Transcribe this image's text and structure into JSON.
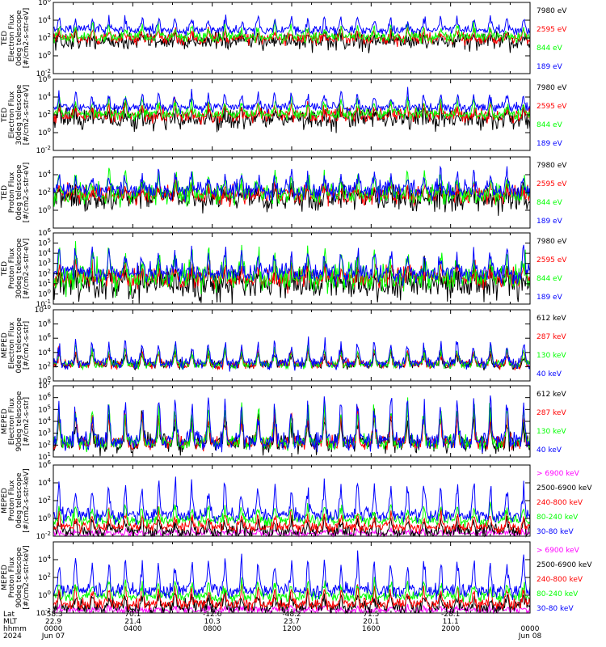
{
  "colors": {
    "black": "#000000",
    "red": "#ff0000",
    "green": "#00ff00",
    "blue": "#0000ff",
    "magenta": "#ff00ff"
  },
  "chart_data": [
    {
      "type": "line",
      "ylabel": [
        "TED",
        "Electron Flux",
        "0deg telescope",
        "[#/cm2-s-str-eV]"
      ],
      "yscale": "log",
      "ylim_exp": [
        -2,
        6
      ],
      "yticks": [
        {
          "base": "10",
          "exp": "6"
        },
        {
          "base": "10",
          "exp": "4"
        },
        {
          "base": "10",
          "exp": "2"
        },
        {
          "base": "10",
          "exp": "0"
        },
        {
          "base": "10",
          "exp": "-2"
        }
      ],
      "series": [
        {
          "name": "7980 eV",
          "color": "#000000",
          "base": 40,
          "peak": 200,
          "noise": 0.5
        },
        {
          "name": "2595 eV",
          "color": "#ff0000",
          "base": 80,
          "peak": 800,
          "noise": 0.3
        },
        {
          "name": "844 eV",
          "color": "#00ff00",
          "base": 120,
          "peak": 4000,
          "noise": 0.3
        },
        {
          "name": "189 eV",
          "color": "#0000ff",
          "base": 800,
          "peak": 30000,
          "noise": 0.25
        }
      ]
    },
    {
      "type": "line",
      "ylabel": [
        "TED",
        "Electron Flux",
        "30deg telescope",
        "[#/cm2-s-str-eV]"
      ],
      "yscale": "log",
      "ylim_exp": [
        -2,
        6
      ],
      "yticks": [
        {
          "base": "10",
          "exp": "6"
        },
        {
          "base": "10",
          "exp": "4"
        },
        {
          "base": "10",
          "exp": "2"
        },
        {
          "base": "10",
          "exp": "0"
        },
        {
          "base": "10",
          "exp": "-2"
        }
      ],
      "series": [
        {
          "name": "7980 eV",
          "color": "#000000",
          "base": 30,
          "peak": 300,
          "noise": 0.6
        },
        {
          "name": "2595 eV",
          "color": "#ff0000",
          "base": 80,
          "peak": 1500,
          "noise": 0.4
        },
        {
          "name": "844 eV",
          "color": "#00ff00",
          "base": 120,
          "peak": 8000,
          "noise": 0.3
        },
        {
          "name": "189 eV",
          "color": "#0000ff",
          "base": 700,
          "peak": 40000,
          "noise": 0.25
        }
      ]
    },
    {
      "type": "line",
      "ylabel": [
        "TED",
        "Proton Flux",
        "0deg telescope",
        "[#/cm2-s-str-eV]"
      ],
      "yscale": "log",
      "ylim_exp": [
        -2,
        6
      ],
      "yticks": [
        {
          "base": "10",
          "exp": "4"
        },
        {
          "base": "10",
          "exp": "2"
        },
        {
          "base": "10",
          "exp": "0"
        }
      ],
      "series": [
        {
          "name": "7980 eV",
          "color": "#000000",
          "base": 20,
          "peak": 200,
          "noise": 0.7
        },
        {
          "name": "2595 eV",
          "color": "#ff0000",
          "base": 50,
          "peak": 800,
          "noise": 0.5
        },
        {
          "name": "844 eV",
          "color": "#00ff00",
          "base": 60,
          "peak": 20000,
          "noise": 0.6
        },
        {
          "name": "189 eV",
          "color": "#0000ff",
          "base": 150,
          "peak": 30000,
          "noise": 0.5
        }
      ]
    },
    {
      "type": "line",
      "ylabel": [
        "TED",
        "Proton Flux",
        "30deg telescope",
        "[#/cm2-s-str-eV]"
      ],
      "yscale": "log",
      "ylim_exp": [
        -1,
        6
      ],
      "yticks": [
        {
          "base": "10",
          "exp": "6"
        },
        {
          "base": "10",
          "exp": "5"
        },
        {
          "base": "10",
          "exp": "4"
        },
        {
          "base": "10",
          "exp": "3"
        },
        {
          "base": "10",
          "exp": "2"
        },
        {
          "base": "10",
          "exp": "1"
        },
        {
          "base": "10",
          "exp": "0"
        },
        {
          "base": "10",
          "exp": "-1"
        }
      ],
      "series": [
        {
          "name": "7980 eV",
          "color": "#000000",
          "base": 8,
          "peak": 200,
          "noise": 0.8
        },
        {
          "name": "2595 eV",
          "color": "#ff0000",
          "base": 30,
          "peak": 600,
          "noise": 0.5
        },
        {
          "name": "844 eV",
          "color": "#00ff00",
          "base": 40,
          "peak": 20000,
          "noise": 0.7
        },
        {
          "name": "189 eV",
          "color": "#0000ff",
          "base": 100,
          "peak": 40000,
          "noise": 0.5
        }
      ]
    },
    {
      "type": "line",
      "ylabel": [
        "MEPED",
        "Electron Flux",
        "0deg telescope",
        "[#/cm2-s-str]"
      ],
      "yscale": "log",
      "ylim_exp": [
        0,
        10
      ],
      "yticks": [
        {
          "base": "10",
          "exp": "10"
        },
        {
          "base": "10",
          "exp": "8"
        },
        {
          "base": "10",
          "exp": "6"
        },
        {
          "base": "10",
          "exp": "4"
        },
        {
          "base": "10",
          "exp": "2"
        },
        {
          "base": "10",
          "exp": "0"
        }
      ],
      "series": [
        {
          "name": "612 keV",
          "color": "#000000",
          "base": 200,
          "peak": 20000,
          "noise": 0.3
        },
        {
          "name": "287 keV",
          "color": "#ff0000",
          "base": 200,
          "peak": 30000,
          "noise": 0.3
        },
        {
          "name": "130 keV",
          "color": "#00ff00",
          "base": 200,
          "peak": 100000,
          "noise": 0.3
        },
        {
          "name": "40 keV",
          "color": "#0000ff",
          "base": 300,
          "peak": 1000000,
          "noise": 0.4
        }
      ]
    },
    {
      "type": "line",
      "ylabel": [
        "MEPED",
        "Electron Flux",
        "90deg telescope",
        "[#/cm2-s-str]"
      ],
      "yscale": "log",
      "ylim_exp": [
        1,
        7
      ],
      "yticks": [
        {
          "base": "10",
          "exp": "7"
        },
        {
          "base": "10",
          "exp": "6"
        },
        {
          "base": "10",
          "exp": "5"
        },
        {
          "base": "10",
          "exp": "4"
        },
        {
          "base": "10",
          "exp": "3"
        },
        {
          "base": "10",
          "exp": "2"
        },
        {
          "base": "10",
          "exp": "1"
        }
      ],
      "series": [
        {
          "name": "612 keV",
          "color": "#000000",
          "base": 150,
          "peak": 40000,
          "noise": 0.4
        },
        {
          "name": "287 keV",
          "color": "#ff0000",
          "base": 150,
          "peak": 100000,
          "noise": 0.3
        },
        {
          "name": "130 keV",
          "color": "#00ff00",
          "base": 150,
          "peak": 400000,
          "noise": 0.3
        },
        {
          "name": "40 keV",
          "color": "#0000ff",
          "base": 200,
          "peak": 2000000,
          "noise": 0.4
        }
      ]
    },
    {
      "type": "line",
      "ylabel": [
        "MEPED",
        "Proton Flux",
        "0deg telescope",
        "[#/cm2-s-str-keV]"
      ],
      "yscale": "log",
      "ylim_exp": [
        -2,
        6
      ],
      "yticks": [
        {
          "base": "10",
          "exp": "6"
        },
        {
          "base": "10",
          "exp": "4"
        },
        {
          "base": "10",
          "exp": "2"
        },
        {
          "base": "10",
          "exp": "0"
        },
        {
          "base": "10",
          "exp": "-2"
        }
      ],
      "series": [
        {
          "name": "> 6900 keV",
          "color": "#ff00ff",
          "base": 0.02,
          "peak": 0.05,
          "noise": 0.2
        },
        {
          "name": "2500-6900 keV",
          "color": "#000000",
          "base": 0.03,
          "peak": 1,
          "noise": 0.4
        },
        {
          "name": "240-800 keV",
          "color": "#ff0000",
          "base": 0.1,
          "peak": 5,
          "noise": 0.3
        },
        {
          "name": "80-240 keV",
          "color": "#00ff00",
          "base": 0.6,
          "peak": 30,
          "noise": 0.3
        },
        {
          "name": "30-80 keV",
          "color": "#0000ff",
          "base": 2,
          "peak": 20000,
          "noise": 0.4
        }
      ]
    },
    {
      "type": "line",
      "ylabel": [
        "MEPED",
        "Proton Flux",
        "90deg telescope",
        "[#/cm2-s-str-keV]"
      ],
      "yscale": "log",
      "ylim_exp": [
        -2,
        6
      ],
      "yticks": [
        {
          "base": "10",
          "exp": "4"
        },
        {
          "base": "10",
          "exp": "2"
        },
        {
          "base": "10",
          "exp": "0"
        },
        {
          "base": "10",
          "exp": "-2"
        }
      ],
      "series": [
        {
          "name": "> 6900 keV",
          "color": "#ff00ff",
          "base": 0.02,
          "peak": 0.05,
          "noise": 0.2
        },
        {
          "name": "2500-6900 keV",
          "color": "#000000",
          "base": 0.05,
          "peak": 2,
          "noise": 0.4
        },
        {
          "name": "240-800 keV",
          "color": "#ff0000",
          "base": 0.1,
          "peak": 10,
          "noise": 0.3
        },
        {
          "name": "80-240 keV",
          "color": "#00ff00",
          "base": 0.8,
          "peak": 60,
          "noise": 0.3
        },
        {
          "name": "30-80 keV",
          "color": "#0000ff",
          "base": 3,
          "peak": 30000,
          "noise": 0.4
        }
      ]
    }
  ],
  "x_axis": {
    "row_labels": [
      "Lat",
      "MLT",
      "hhmm",
      "2024"
    ],
    "ticks": [
      {
        "lat": "-58.3",
        "mlt": "22.9",
        "hhmm": "0000",
        "date": "Jun 07"
      },
      {
        "lat": "70.1",
        "mlt": "21.4",
        "hhmm": "0400",
        "date": ""
      },
      {
        "lat": "-12.6",
        "mlt": "10.3",
        "hhmm": "0800",
        "date": ""
      },
      {
        "lat": "-48.2",
        "mlt": "23.7",
        "hhmm": "1200",
        "date": ""
      },
      {
        "lat": "71.5",
        "mlt": "20.1",
        "hhmm": "1600",
        "date": ""
      },
      {
        "lat": "-28.1",
        "mlt": "11.1",
        "hhmm": "2000",
        "date": ""
      },
      {
        "lat": "",
        "mlt": "",
        "hhmm": "0000",
        "date": "Jun 08"
      }
    ]
  }
}
